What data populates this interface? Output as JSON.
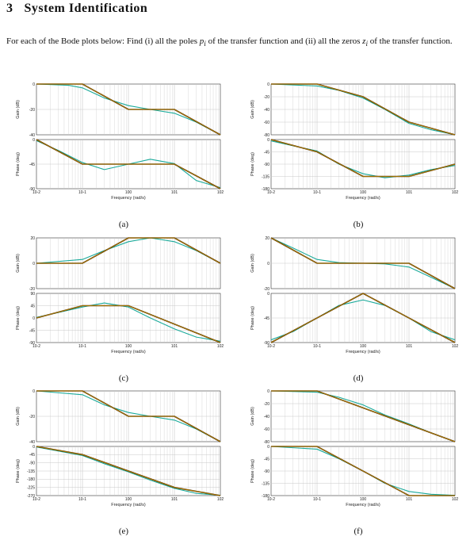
{
  "section": {
    "number": "3",
    "title": "System Identification"
  },
  "intro": {
    "part1": "For each of the Bode plots below: Find (i) all the poles ",
    "pole_sym": "p",
    "pole_sub": "i",
    "part2": " of the transfer function and (ii) all the zeros ",
    "zero_sym": "z",
    "zero_sub": "i",
    "part3": " of the transfer function."
  },
  "colors": {
    "exact": "#1aaa9a",
    "asymptote": "#5a3200",
    "asymptote_inner": "#e8b000",
    "grid": "#c8c8c8"
  },
  "chart_data": [
    {
      "caption": "(a)",
      "type": "line",
      "xlabel": "Frequency (rad/s)",
      "xscale": "log",
      "xlim": [
        0.01,
        100
      ],
      "x_ticks": [
        "10-2",
        "10-1",
        "100",
        "101",
        "102"
      ],
      "gain": {
        "ylabel": "Gain (dB)",
        "ylim": [
          -40,
          0
        ],
        "yticks": [
          0,
          -20,
          -40
        ],
        "asymptote": [
          [
            0.01,
            0
          ],
          [
            0.1,
            0
          ],
          [
            1,
            -20
          ],
          [
            10,
            -20
          ],
          [
            100,
            -40
          ]
        ],
        "exact": [
          [
            0.01,
            0
          ],
          [
            0.05,
            -1
          ],
          [
            0.1,
            -3
          ],
          [
            0.3,
            -11
          ],
          [
            1,
            -17
          ],
          [
            3,
            -20
          ],
          [
            10,
            -23
          ],
          [
            30,
            -30
          ],
          [
            100,
            -40
          ]
        ]
      },
      "phase": {
        "ylabel": "Phase (deg)",
        "ylim": [
          -90,
          0
        ],
        "yticks": [
          0,
          -45,
          -90
        ],
        "asymptote": [
          [
            0.01,
            0
          ],
          [
            0.1,
            -45
          ],
          [
            10,
            -45
          ],
          [
            100,
            -90
          ]
        ],
        "exact": [
          [
            0.01,
            -2
          ],
          [
            0.03,
            -20
          ],
          [
            0.1,
            -42
          ],
          [
            0.3,
            -55
          ],
          [
            1,
            -45
          ],
          [
            3,
            -36
          ],
          [
            10,
            -44
          ],
          [
            30,
            -75
          ],
          [
            100,
            -88
          ]
        ]
      }
    },
    {
      "caption": "(b)",
      "type": "line",
      "xlabel": "Frequency (rad/s)",
      "xscale": "log",
      "xlim": [
        0.01,
        100
      ],
      "x_ticks": [
        "10-2",
        "10-1",
        "100",
        "101",
        "102"
      ],
      "gain": {
        "ylabel": "Gain (dB)",
        "ylim": [
          -80,
          0
        ],
        "yticks": [
          0,
          -20,
          -40,
          -60,
          -80
        ],
        "asymptote": [
          [
            0.01,
            0
          ],
          [
            0.1,
            0
          ],
          [
            1,
            -20
          ],
          [
            10,
            -60
          ],
          [
            100,
            -80
          ]
        ],
        "exact": [
          [
            0.01,
            0
          ],
          [
            0.1,
            -3
          ],
          [
            0.3,
            -10
          ],
          [
            1,
            -22
          ],
          [
            3,
            -40
          ],
          [
            10,
            -62
          ],
          [
            30,
            -72
          ],
          [
            100,
            -80
          ]
        ]
      },
      "phase": {
        "ylabel": "Phase (deg)",
        "ylim": [
          -180,
          0
        ],
        "yticks": [
          0,
          -45,
          -90,
          -135,
          -180
        ],
        "asymptote": [
          [
            0.01,
            0
          ],
          [
            0.1,
            -45
          ],
          [
            1,
            -135
          ],
          [
            10,
            -135
          ],
          [
            100,
            -90
          ]
        ],
        "exact": [
          [
            0.01,
            -5
          ],
          [
            0.1,
            -42
          ],
          [
            0.3,
            -90
          ],
          [
            1,
            -125
          ],
          [
            3,
            -140
          ],
          [
            10,
            -130
          ],
          [
            30,
            -110
          ],
          [
            100,
            -95
          ]
        ]
      }
    },
    {
      "caption": "(c)",
      "type": "line",
      "xlabel": "Frequency (rad/s)",
      "xscale": "log",
      "xlim": [
        0.01,
        100
      ],
      "x_ticks": [
        "10-2",
        "10-1",
        "100",
        "101",
        "102"
      ],
      "gain": {
        "ylabel": "Gain (dB)",
        "ylim": [
          -20,
          20
        ],
        "yticks": [
          20,
          0,
          -20
        ],
        "asymptote": [
          [
            0.01,
            0
          ],
          [
            0.1,
            0
          ],
          [
            1,
            20
          ],
          [
            10,
            20
          ],
          [
            100,
            0
          ]
        ],
        "exact": [
          [
            0.01,
            0
          ],
          [
            0.1,
            3
          ],
          [
            0.3,
            10
          ],
          [
            1,
            17
          ],
          [
            3,
            20
          ],
          [
            10,
            17
          ],
          [
            30,
            10
          ],
          [
            100,
            0
          ]
        ]
      },
      "phase": {
        "ylabel": "Phase (deg)",
        "ylim": [
          -90,
          90
        ],
        "yticks": [
          90,
          45,
          0,
          -45,
          -90
        ],
        "asymptote": [
          [
            0.01,
            0
          ],
          [
            0.1,
            45
          ],
          [
            1,
            45
          ],
          [
            100,
            -90
          ]
        ],
        "exact": [
          [
            0.01,
            2
          ],
          [
            0.1,
            40
          ],
          [
            0.3,
            55
          ],
          [
            1,
            40
          ],
          [
            3,
            0
          ],
          [
            10,
            -40
          ],
          [
            30,
            -70
          ],
          [
            100,
            -85
          ]
        ]
      }
    },
    {
      "caption": "(d)",
      "type": "line",
      "xlabel": "Frequency (rad/s)",
      "xscale": "log",
      "xlim": [
        0.01,
        100
      ],
      "x_ticks": [
        "10-2",
        "10-1",
        "100",
        "101",
        "102"
      ],
      "gain": {
        "ylabel": "Gain (dB)",
        "ylim": [
          -20,
          20
        ],
        "yticks": [
          20,
          0,
          -20
        ],
        "asymptote": [
          [
            0.01,
            20
          ],
          [
            0.1,
            0
          ],
          [
            10,
            0
          ],
          [
            100,
            -20
          ]
        ],
        "exact": [
          [
            0.01,
            20
          ],
          [
            0.03,
            12
          ],
          [
            0.1,
            3
          ],
          [
            0.3,
            0.5
          ],
          [
            1,
            0
          ],
          [
            3,
            -0.5
          ],
          [
            10,
            -3
          ],
          [
            30,
            -11
          ],
          [
            100,
            -20
          ]
        ]
      },
      "phase": {
        "ylabel": "Phase (deg)",
        "ylim": [
          -90,
          0
        ],
        "yticks": [
          0,
          -45,
          -90
        ],
        "asymptote": [
          [
            0.01,
            -90
          ],
          [
            1,
            0
          ],
          [
            100,
            -90
          ]
        ],
        "exact": [
          [
            0.01,
            -85
          ],
          [
            0.03,
            -70
          ],
          [
            0.1,
            -45
          ],
          [
            0.3,
            -22
          ],
          [
            1,
            -12
          ],
          [
            3,
            -22
          ],
          [
            10,
            -45
          ],
          [
            30,
            -70
          ],
          [
            100,
            -85
          ]
        ]
      }
    },
    {
      "caption": "(e)",
      "type": "line",
      "xlabel": "Frequency (rad/s)",
      "xscale": "log",
      "xlim": [
        0.01,
        100
      ],
      "x_ticks": [
        "10-2",
        "10-1",
        "100",
        "101",
        "102"
      ],
      "gain": {
        "ylabel": "Gain (dB)",
        "ylim": [
          -40,
          0
        ],
        "yticks": [
          0,
          -20,
          -40
        ],
        "asymptote": [
          [
            0.01,
            0
          ],
          [
            0.1,
            0
          ],
          [
            1,
            -20
          ],
          [
            10,
            -20
          ],
          [
            100,
            -40
          ]
        ],
        "exact": [
          [
            0.01,
            0
          ],
          [
            0.1,
            -3
          ],
          [
            0.3,
            -11
          ],
          [
            1,
            -17
          ],
          [
            3,
            -20
          ],
          [
            10,
            -23
          ],
          [
            30,
            -30
          ],
          [
            100,
            -40
          ]
        ]
      },
      "phase": {
        "ylabel": "Phase (deg)",
        "ylim": [
          -270,
          0
        ],
        "yticks": [
          0,
          -45,
          -90,
          -135,
          -180,
          -225,
          -270
        ],
        "asymptote": [
          [
            0.01,
            0
          ],
          [
            0.1,
            -45
          ],
          [
            10,
            -225
          ],
          [
            100,
            -270
          ]
        ],
        "exact": [
          [
            0.01,
            -3
          ],
          [
            0.1,
            -50
          ],
          [
            0.3,
            -95
          ],
          [
            1,
            -140
          ],
          [
            3,
            -185
          ],
          [
            10,
            -230
          ],
          [
            30,
            -258
          ],
          [
            100,
            -268
          ]
        ]
      }
    },
    {
      "caption": "(f)",
      "type": "line",
      "xlabel": "Frequency (rad/s)",
      "xscale": "log",
      "xlim": [
        0.01,
        100
      ],
      "x_ticks": [
        "10-2",
        "10-1",
        "100",
        "101",
        "102"
      ],
      "gain": {
        "ylabel": "Gain (dB)",
        "ylim": [
          -80,
          0
        ],
        "yticks": [
          0,
          -20,
          -40,
          -60,
          -80
        ],
        "asymptote": [
          [
            0.01,
            0
          ],
          [
            0.1,
            0
          ],
          [
            100,
            -80
          ]
        ],
        "exact": [
          [
            0.01,
            0
          ],
          [
            0.1,
            -2
          ],
          [
            0.3,
            -10
          ],
          [
            1,
            -22
          ],
          [
            3,
            -38
          ],
          [
            10,
            -52
          ],
          [
            30,
            -66
          ],
          [
            100,
            -80
          ]
        ]
      },
      "phase": {
        "ylabel": "Phase (deg)",
        "ylim": [
          -180,
          0
        ],
        "yticks": [
          0,
          -45,
          -90,
          -135,
          -180
        ],
        "asymptote": [
          [
            0.01,
            0
          ],
          [
            0.1,
            0
          ],
          [
            10,
            -180
          ],
          [
            100,
            -180
          ]
        ],
        "exact": [
          [
            0.01,
            0
          ],
          [
            0.1,
            -10
          ],
          [
            0.3,
            -45
          ],
          [
            1,
            -90
          ],
          [
            3,
            -135
          ],
          [
            10,
            -165
          ],
          [
            30,
            -175
          ],
          [
            100,
            -179
          ]
        ]
      }
    }
  ]
}
